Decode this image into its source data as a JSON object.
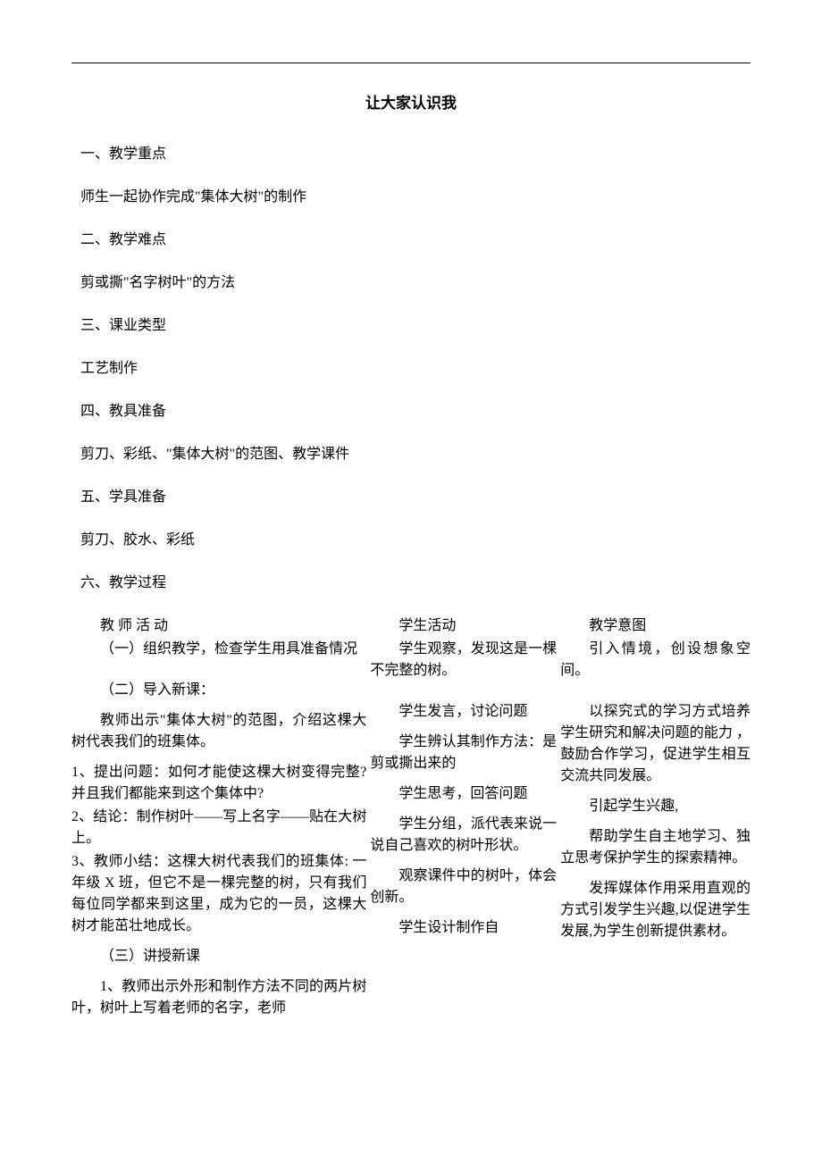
{
  "title": "让大家认识我",
  "sections": {
    "s1_h": "一、教学重点",
    "s1_b": "师生一起协作完成\"集体大树\"的制作",
    "s2_h": "二、教学难点",
    "s2_b": "剪或撕\"名字树叶\"的方法",
    "s3_h": "三、课业类型",
    "s3_b": "工艺制作",
    "s4_h": "四、教具准备",
    "s4_b": "剪刀、彩纸、\"集体大树\"的范图、教学课件",
    "s5_h": "五、学具准备",
    "s5_b": "剪刀、胶水、彩纸",
    "s6_h": "六、教学过程"
  },
  "table": {
    "headers": {
      "teacher": "教 师 活 动",
      "student": "学生活动",
      "intent": "教学意图"
    },
    "teacher": {
      "r1": "（一）组织教学，检查学生用具准备情况",
      "r2a": "（二）导入新课：",
      "r2b": "教师出示\"集体大树\"的范图，介绍这棵大树代表我们的班集体。",
      "r3a": "1、提出问题：如何才能使这棵大树变得完整?并且我们都能来到这个集体中?",
      "r3b": "2、结论：制作树叶——写上名字——贴在大树上。",
      "r3c": "3、教师小结：这棵大树代表我们的班集体: 一年级 X 班，但它不是一棵完整的树，只有我们每位同学都来到这里，成为它的一员，这棵大树才能茁壮地成长。",
      "r4a": "（三）讲授新课",
      "r4b": "1、教师出示外形和制作方法不同的两片树叶，树叶上写着老师的名字，老师"
    },
    "student": {
      "r1": "学生观察，发现这是一棵不完整的树。",
      "r2a": "学生发言，讨论问题",
      "r2b": "学生辨认其制作方法：是剪或撕出来的",
      "r3a": "学生思考，回答问题",
      "r3b": "学生分组，派代表来说一说自己喜欢的树叶形状。",
      "r4a": "观察课件中的树叶，体会创新。",
      "r4b": "学生设计制作自"
    },
    "intent": {
      "r1": "引入情境，创设想象空间。",
      "r2": "以探究式的学习方式培养学生研究和解决问题的能力 ，鼓励合作学习，促进学生相互交流共同发展。",
      "r3a": "引起学生兴趣,",
      "r3b": "帮助学生自主地学习、独立思考保护学生的探索精神。",
      "r4": "发挥媒体作用采用直观的方式引发学生兴趣,以促进学生发展,为学生创新提供素材。"
    }
  }
}
